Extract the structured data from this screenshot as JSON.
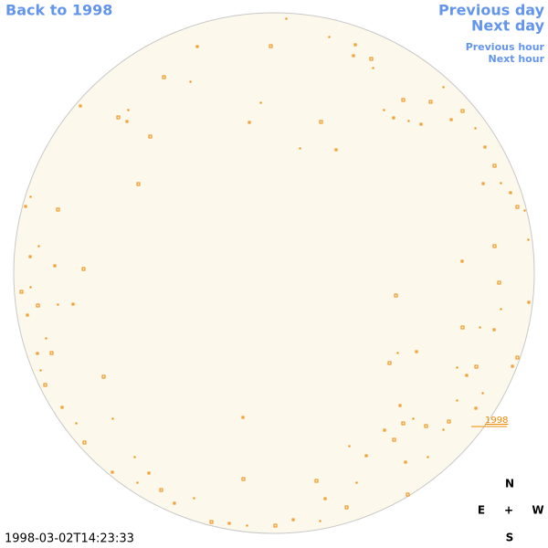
{
  "nav": {
    "back": "Back to 1998",
    "previous_day": "Previous day",
    "next_day": "Next day",
    "previous_hour": "Previous hour",
    "next_hour": "Next hour"
  },
  "timestamp": "1998-03-02T14:23:33",
  "compass": {
    "north": "N",
    "east": "E",
    "center": "+",
    "west": "W",
    "south": "S"
  },
  "region_label": "1998"
}
